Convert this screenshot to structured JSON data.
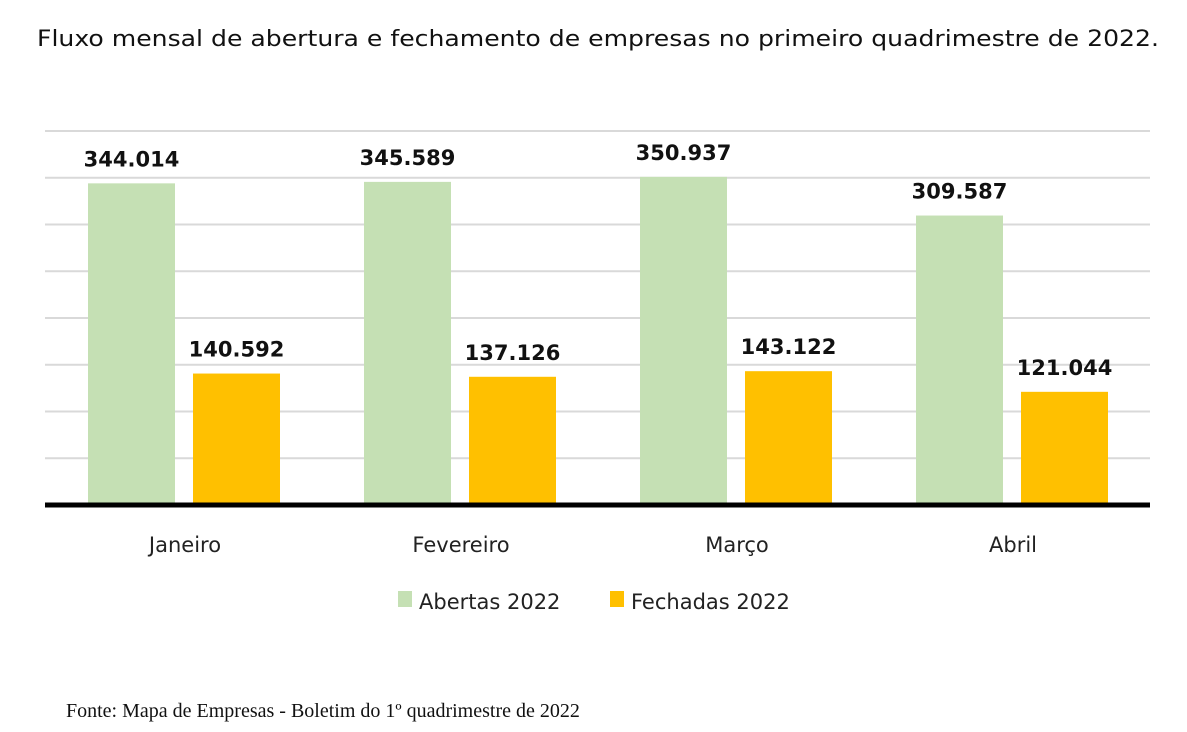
{
  "chart_data": {
    "type": "bar",
    "title": "Fluxo mensal de abertura e fechamento de empresas no primeiro quadrimestre de 2022.",
    "categories": [
      "Janeiro",
      "Fevereiro",
      "Março",
      "Abril"
    ],
    "series": [
      {
        "name": "Abertas 2022",
        "color": "#c5e0b4",
        "values": [
          344014,
          345589,
          350937,
          309587
        ],
        "labels": [
          "344.014",
          "345.589",
          "350.937",
          "309.587"
        ]
      },
      {
        "name": "Fechadas 2022",
        "color": "#ffc000",
        "values": [
          140592,
          137126,
          143122,
          121044
        ],
        "labels": [
          "140.592",
          "137.126",
          "143.122",
          "121.044"
        ]
      }
    ],
    "ylim": [
      0,
      400000
    ],
    "ytick_step": 50000,
    "grid": true,
    "y_axis_labels_shown": false,
    "legend": "bottom-center",
    "source": "Fonte: Mapa de Empresas - Boletim do 1º quadrimestre de 2022"
  }
}
